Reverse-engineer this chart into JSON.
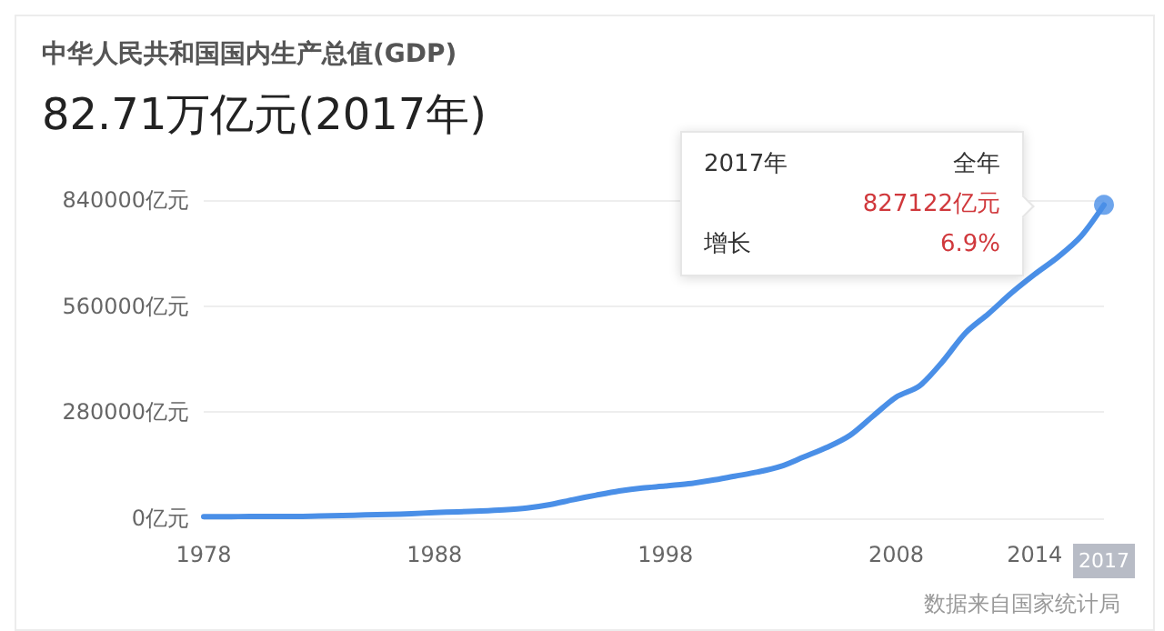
{
  "chart_data": {
    "type": "line",
    "title": "中华人民共和国国内生产总值(GDP)",
    "subtitle": "82.71万亿元(2017年)",
    "x": [
      1978,
      1979,
      1980,
      1981,
      1982,
      1983,
      1984,
      1985,
      1986,
      1987,
      1988,
      1989,
      1990,
      1991,
      1992,
      1993,
      1994,
      1995,
      1996,
      1997,
      1998,
      1999,
      2000,
      2001,
      2002,
      2003,
      2004,
      2005,
      2006,
      2007,
      2008,
      2009,
      2010,
      2011,
      2012,
      2013,
      2014,
      2015,
      2016,
      2017
    ],
    "series": [
      {
        "color": "#4a8fe7",
        "values": [
          4000,
          4000,
          5000,
          5000,
          5000,
          6000,
          7000,
          9000,
          10000,
          12000,
          15000,
          17000,
          19000,
          22000,
          27000,
          36000,
          49000,
          61000,
          72000,
          80000,
          85000,
          91000,
          100000,
          111000,
          122000,
          137000,
          162000,
          187000,
          219000,
          270000,
          320000,
          349000,
          413000,
          489000,
          540000,
          595000,
          644000,
          689000,
          744000,
          827122
        ]
      }
    ],
    "xlim": [
      1978,
      2017
    ],
    "xticks": [
      1978,
      1988,
      1998,
      2008,
      2014,
      2017
    ],
    "ylim": [
      0,
      840000
    ],
    "yticks": [
      {
        "value": 0,
        "label": "0亿元"
      },
      {
        "value": 280000,
        "label": "280000亿元"
      },
      {
        "value": 560000,
        "label": "560000亿元"
      },
      {
        "value": 840000,
        "label": "840000亿元"
      }
    ],
    "grid": "y",
    "marker": "none",
    "line_style": "solid",
    "annotations": [
      "2017年",
      "全年",
      "827122亿元",
      "增长",
      "6.9%",
      "数据来自国家统计局"
    ]
  }
}
